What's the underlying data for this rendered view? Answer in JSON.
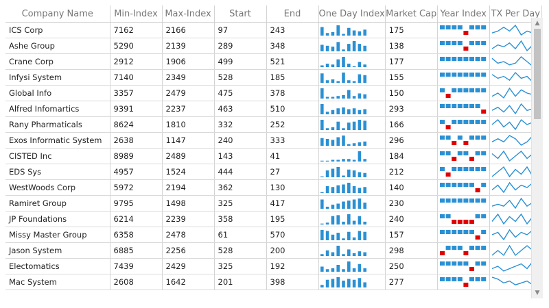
{
  "columns": [
    "Company Name",
    "Min-Index",
    "Max-Index",
    "Start",
    "End",
    "One Day Index",
    "Market Cap",
    "Year Index",
    "TX Per Day"
  ],
  "colors": {
    "bar": "#2a90d4",
    "neg": "#e00000",
    "line": "#2a90d4"
  },
  "rows": [
    {
      "company": "ICS Corp",
      "min": "7162",
      "max": "2166",
      "start": "97",
      "end": "243",
      "cap": "175",
      "day": [
        10,
        3,
        4,
        12,
        2,
        9,
        6,
        5,
        7
      ],
      "year": [
        1,
        1,
        1,
        1,
        -1,
        1,
        1,
        1
      ],
      "tx": [
        5,
        6,
        8,
        6,
        9,
        4,
        6,
        5,
        8
      ]
    },
    {
      "company": "Ashe Group",
      "min": "5290",
      "max": "2139",
      "start": "289",
      "end": "348",
      "cap": "138",
      "day": [
        7,
        6,
        5,
        10,
        2,
        8,
        11,
        8,
        6
      ],
      "year": [
        1,
        1,
        1,
        1,
        -1,
        1,
        1,
        1
      ],
      "tx": [
        5,
        7,
        6,
        8,
        5,
        9,
        4,
        7,
        6
      ]
    },
    {
      "company": "Crane Corp",
      "min": "2912",
      "max": "1906",
      "start": "499",
      "end": "521",
      "cap": "177",
      "day": [
        2,
        4,
        3,
        9,
        12,
        4,
        1,
        6,
        3
      ],
      "year": [
        1,
        1,
        1,
        1,
        1,
        1,
        1,
        1
      ],
      "tx": [
        8,
        5,
        6,
        4,
        5,
        9,
        6,
        3,
        7
      ]
    },
    {
      "company": "Infysi System",
      "min": "7140",
      "max": "2349",
      "start": "528",
      "end": "185",
      "cap": "155",
      "day": [
        11,
        3,
        4,
        2,
        12,
        3,
        2,
        10,
        9
      ],
      "year": [
        1,
        1,
        1,
        1,
        1,
        1,
        1,
        1
      ],
      "tx": [
        7,
        5,
        6,
        4,
        8,
        5,
        6,
        3,
        4
      ]
    },
    {
      "company": "Global Info",
      "min": "3357",
      "max": "2479",
      "start": "475",
      "end": "378",
      "cap": "150",
      "day": [
        12,
        2,
        2,
        3,
        4,
        10,
        3,
        6,
        5
      ],
      "year": [
        1,
        -1,
        1,
        1,
        1,
        1,
        1,
        1
      ],
      "tx": [
        4,
        6,
        3,
        9,
        4,
        8,
        6,
        5,
        7
      ]
    },
    {
      "company": "Alfred Infomartics",
      "min": "9391",
      "max": "2237",
      "start": "463",
      "end": "510",
      "cap": "293",
      "day": [
        12,
        3,
        5,
        7,
        8,
        6,
        7,
        5,
        6
      ],
      "year": [
        1,
        1,
        1,
        1,
        1,
        1,
        1,
        -1
      ],
      "tx": [
        5,
        7,
        4,
        8,
        3,
        9,
        5,
        6,
        7
      ]
    },
    {
      "company": "Rany Pharmaticals",
      "min": "8624",
      "max": "1810",
      "start": "332",
      "end": "252",
      "cap": "166",
      "day": [
        11,
        2,
        3,
        9,
        2,
        8,
        9,
        11,
        10
      ],
      "year": [
        1,
        -1,
        1,
        1,
        1,
        1,
        1,
        1
      ],
      "tx": [
        6,
        8,
        5,
        7,
        4,
        8,
        6,
        7,
        5
      ]
    },
    {
      "company": "Exos Informatic System",
      "min": "2638",
      "max": "1147",
      "start": "240",
      "end": "333",
      "cap": "296",
      "day": [
        9,
        8,
        7,
        10,
        12,
        2,
        3,
        4,
        5
      ],
      "year": [
        1,
        1,
        -1,
        1,
        -1,
        1,
        1,
        1
      ],
      "tx": [
        6,
        7,
        6,
        8,
        7,
        5,
        6,
        8,
        7
      ]
    },
    {
      "company": "CISTED Inc",
      "min": "8989",
      "max": "2489",
      "start": "143",
      "end": "41",
      "cap": "184",
      "day": [
        1,
        1,
        2,
        2,
        3,
        3,
        2,
        12,
        3
      ],
      "year": [
        1,
        1,
        -1,
        1,
        1,
        -1,
        1,
        1
      ],
      "tx": [
        7,
        5,
        8,
        4,
        6,
        8,
        5,
        7,
        4
      ]
    },
    {
      "company": "EDS Sys",
      "min": "4957",
      "max": "1524",
      "start": "444",
      "end": "27",
      "cap": "212",
      "day": [
        1,
        8,
        10,
        12,
        2,
        9,
        8,
        6,
        5
      ],
      "year": [
        1,
        -1,
        1,
        1,
        1,
        1,
        1,
        1
      ],
      "tx": [
        4,
        6,
        8,
        4,
        7,
        5,
        8,
        4,
        6
      ]
    },
    {
      "company": "WestWoods Corp",
      "min": "5972",
      "max": "2194",
      "start": "362",
      "end": "130",
      "cap": "140",
      "day": [
        1,
        8,
        7,
        9,
        10,
        12,
        8,
        6,
        7
      ],
      "year": [
        1,
        1,
        1,
        1,
        1,
        1,
        -1,
        1
      ],
      "tx": [
        5,
        7,
        4,
        8,
        5,
        7,
        6,
        8,
        4
      ]
    },
    {
      "company": "Ramiret Group",
      "min": "9795",
      "max": "1498",
      "start": "325",
      "end": "417",
      "cap": "230",
      "day": [
        9,
        2,
        4,
        5,
        7,
        8,
        9,
        10,
        6
      ],
      "year": [
        1,
        1,
        1,
        1,
        1,
        1,
        1,
        1
      ],
      "tx": [
        5,
        6,
        5,
        8,
        4,
        9,
        5,
        7,
        6
      ]
    },
    {
      "company": "JP Foundations",
      "min": "6214",
      "max": "2239",
      "start": "358",
      "end": "195",
      "cap": "240",
      "day": [
        1,
        2,
        9,
        10,
        3,
        11,
        4,
        9,
        3
      ],
      "year": [
        1,
        1,
        -1,
        -1,
        -1,
        -1,
        1,
        1
      ],
      "tx": [
        5,
        8,
        4,
        7,
        5,
        8,
        4,
        7,
        5
      ]
    },
    {
      "company": "Missy Master Group",
      "min": "6358",
      "max": "2478",
      "start": "61",
      "end": "570",
      "cap": "157",
      "day": [
        11,
        10,
        6,
        8,
        2,
        9,
        3,
        10,
        9
      ],
      "year": [
        1,
        1,
        1,
        1,
        1,
        1,
        -1,
        1
      ],
      "tx": [
        6,
        7,
        4,
        8,
        5,
        7,
        6,
        8,
        7
      ]
    },
    {
      "company": "Jason System",
      "min": "6885",
      "max": "2256",
      "start": "528",
      "end": "200",
      "cap": "298",
      "day": [
        2,
        6,
        4,
        11,
        2,
        7,
        3,
        5,
        4
      ],
      "year": [
        -1,
        1,
        1,
        1,
        -1,
        1,
        1,
        1
      ],
      "tx": [
        6,
        7,
        6,
        8,
        6,
        7,
        8,
        7,
        6
      ]
    },
    {
      "company": "Electomatics",
      "min": "7439",
      "max": "2429",
      "start": "325",
      "end": "192",
      "cap": "250",
      "day": [
        6,
        3,
        4,
        8,
        3,
        12,
        4,
        9,
        4
      ],
      "year": [
        1,
        1,
        1,
        1,
        1,
        -1,
        1,
        1
      ],
      "tx": [
        5,
        6,
        4,
        5,
        6,
        7,
        5,
        8,
        6
      ]
    },
    {
      "company": "Mac System",
      "min": "2608",
      "max": "1642",
      "start": "201",
      "end": "398",
      "cap": "277",
      "day": [
        3,
        9,
        10,
        12,
        8,
        10,
        9,
        11,
        6
      ],
      "year": [
        1,
        1,
        1,
        1,
        -1,
        1,
        1,
        1
      ],
      "tx": [
        8,
        7,
        5,
        6,
        4,
        5,
        6,
        4,
        3
      ]
    }
  ]
}
